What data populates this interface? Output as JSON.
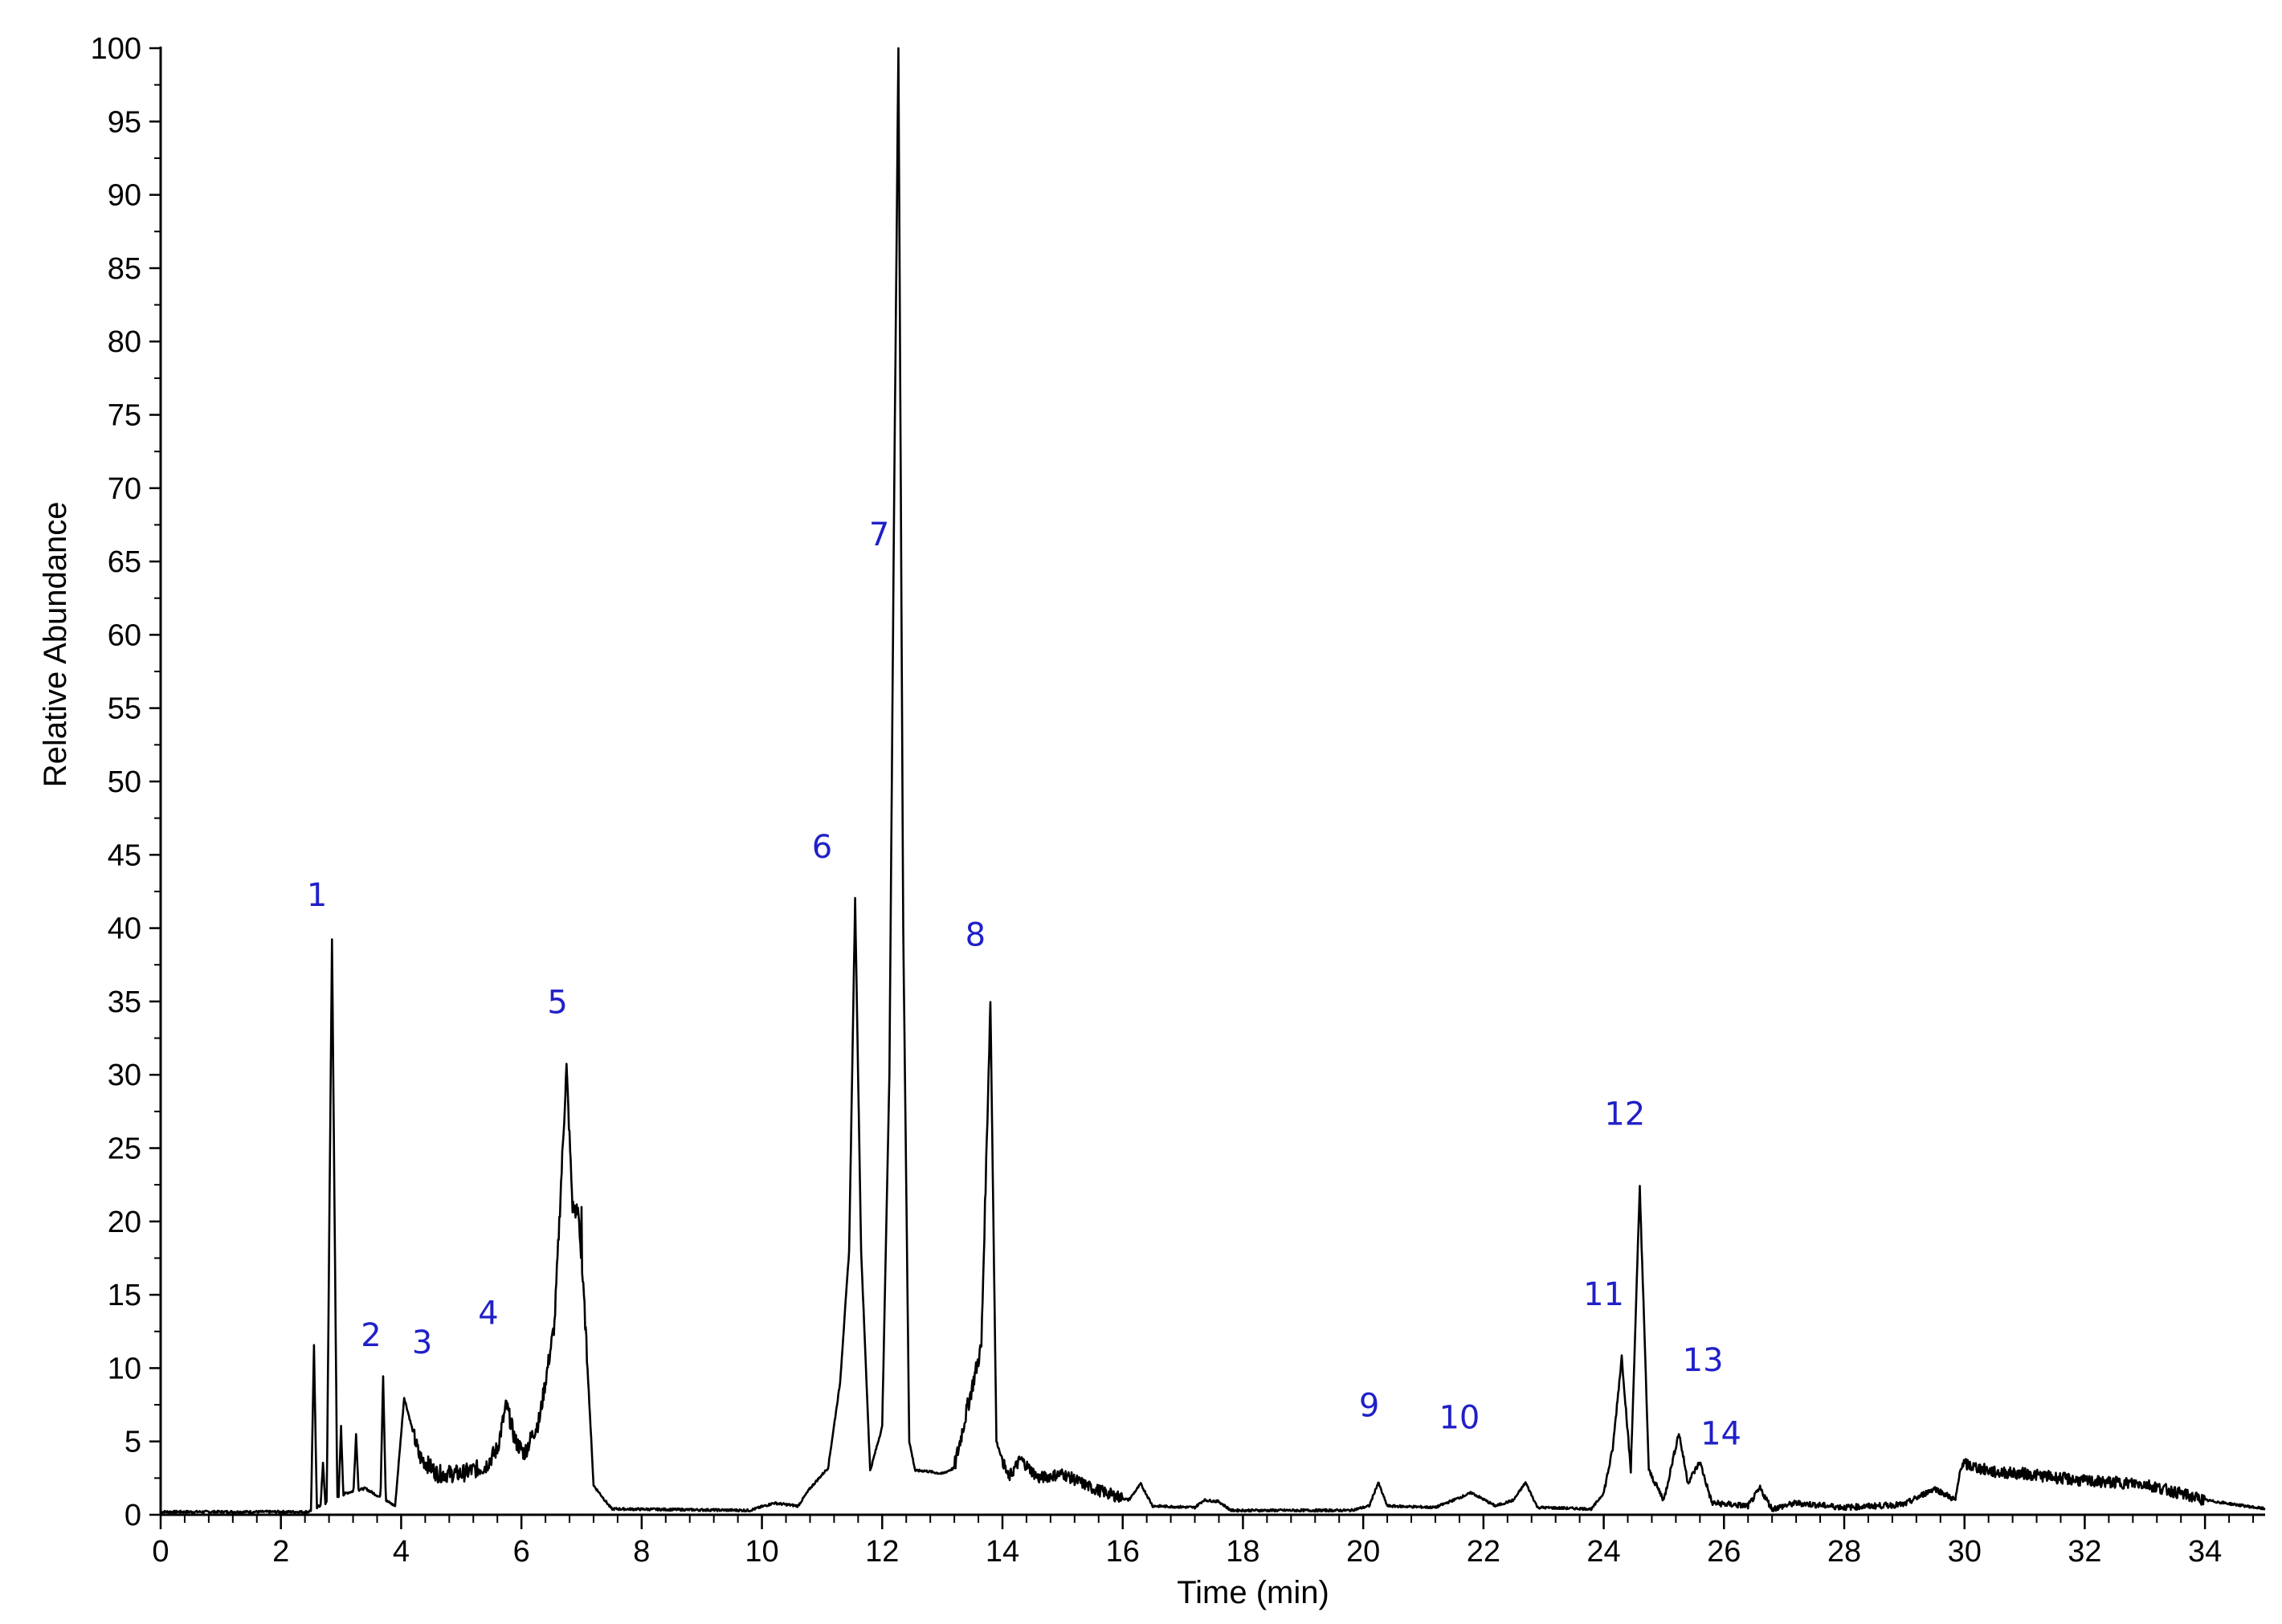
{
  "chart_data": {
    "type": "line",
    "xlabel": "Time (min)",
    "ylabel": "Relative Abundance",
    "xlim": [
      0,
      35
    ],
    "ylim": [
      0,
      100
    ],
    "x_ticks": [
      0,
      2,
      4,
      6,
      8,
      10,
      12,
      14,
      16,
      18,
      20,
      22,
      24,
      26,
      28,
      30,
      32,
      34
    ],
    "x_tick_labels": [
      "0",
      "2",
      "4",
      "6",
      "8",
      "10",
      "12",
      "14",
      "16",
      "18",
      "20",
      "22",
      "24",
      "26",
      "28",
      "30",
      "32",
      "34"
    ],
    "x_minor_step": 0.4,
    "y_ticks": [
      0,
      5,
      10,
      15,
      20,
      25,
      30,
      35,
      40,
      45,
      50,
      55,
      60,
      65,
      70,
      75,
      80,
      85,
      90,
      95,
      100
    ],
    "y_tick_labels": [
      "0",
      "5",
      "10",
      "15",
      "20",
      "25",
      "30",
      "35",
      "40",
      "45",
      "50",
      "55",
      "60",
      "65",
      "70",
      "75",
      "80",
      "85",
      "90",
      "95",
      "100"
    ],
    "grid": false,
    "legend": "none",
    "line_color": "#000000",
    "label_color": "#2020c8",
    "baseline": [
      [
        0,
        0.2
      ],
      [
        2.45,
        0.2
      ],
      [
        3.1,
        1.5
      ],
      [
        3.4,
        1.8
      ],
      [
        3.9,
        0.6
      ],
      [
        4.05,
        8
      ],
      [
        4.3,
        4
      ],
      [
        4.6,
        2.8
      ],
      [
        5.0,
        2.8
      ],
      [
        5.4,
        3.3
      ],
      [
        5.6,
        4.5
      ],
      [
        5.75,
        7.5
      ],
      [
        5.9,
        5
      ],
      [
        6.05,
        4.2
      ],
      [
        6.3,
        6.5
      ],
      [
        6.55,
        13
      ],
      [
        6.75,
        30.5
      ],
      [
        6.85,
        21
      ],
      [
        6.95,
        20.5
      ],
      [
        7.05,
        14
      ],
      [
        7.2,
        2
      ],
      [
        7.5,
        0.4
      ],
      [
        9.8,
        0.3
      ],
      [
        10.2,
        0.8
      ],
      [
        10.6,
        0.6
      ],
      [
        10.8,
        1.8
      ],
      [
        11.1,
        3.2
      ],
      [
        11.3,
        9
      ],
      [
        11.45,
        18
      ],
      [
        11.55,
        42
      ],
      [
        11.65,
        18
      ],
      [
        11.8,
        3
      ],
      [
        12.0,
        6
      ],
      [
        12.12,
        30
      ],
      [
        12.2,
        70
      ],
      [
        12.27,
        100
      ],
      [
        12.35,
        40
      ],
      [
        12.45,
        5
      ],
      [
        12.55,
        3
      ],
      [
        12.7,
        3
      ],
      [
        13.0,
        2.8
      ],
      [
        13.2,
        3.2
      ],
      [
        13.4,
        7
      ],
      [
        13.65,
        11.5
      ],
      [
        13.8,
        35
      ],
      [
        13.9,
        5
      ],
      [
        14.1,
        2.5
      ],
      [
        14.3,
        3.8
      ],
      [
        14.6,
        2.5
      ],
      [
        15.0,
        2.8
      ],
      [
        15.5,
        1.8
      ],
      [
        16.1,
        1.0
      ],
      [
        16.3,
        2.1
      ],
      [
        16.5,
        0.6
      ],
      [
        17.2,
        0.5
      ],
      [
        17.35,
        1.0
      ],
      [
        17.6,
        0.9
      ],
      [
        17.8,
        0.3
      ],
      [
        19.8,
        0.3
      ],
      [
        20.1,
        0.6
      ],
      [
        20.25,
        2.2
      ],
      [
        20.4,
        0.6
      ],
      [
        21.2,
        0.5
      ],
      [
        21.8,
        1.5
      ],
      [
        22.2,
        0.6
      ],
      [
        22.5,
        1.0
      ],
      [
        22.7,
        2.2
      ],
      [
        22.9,
        0.5
      ],
      [
        23.8,
        0.4
      ],
      [
        24.0,
        1.5
      ],
      [
        24.15,
        4.5
      ],
      [
        24.3,
        10.8
      ],
      [
        24.45,
        3
      ],
      [
        24.6,
        22.3
      ],
      [
        24.75,
        3
      ],
      [
        25.0,
        1.0
      ],
      [
        25.25,
        5.6
      ],
      [
        25.4,
        2.2
      ],
      [
        25.6,
        3.6
      ],
      [
        25.8,
        0.8
      ],
      [
        26.4,
        0.6
      ],
      [
        26.6,
        1.8
      ],
      [
        26.8,
        0.4
      ],
      [
        27.2,
        0.8
      ],
      [
        28.0,
        0.5
      ],
      [
        29.0,
        0.7
      ],
      [
        29.5,
        1.8
      ],
      [
        29.85,
        1.0
      ],
      [
        29.95,
        3.5
      ],
      [
        30.5,
        2.9
      ],
      [
        31.0,
        2.8
      ],
      [
        32.0,
        2.3
      ],
      [
        33.0,
        2.1
      ],
      [
        34.0,
        1.0
      ],
      [
        35,
        0.4
      ]
    ],
    "spikes": [
      {
        "x": 2.55,
        "y": 11.5,
        "w": 0.05
      },
      {
        "x": 2.7,
        "y": 3.5,
        "w": 0.05
      },
      {
        "x": 2.85,
        "y": 39.2,
        "w": 0.09
      },
      {
        "x": 3.0,
        "y": 6.0,
        "w": 0.05
      },
      {
        "x": 3.25,
        "y": 5.5,
        "w": 0.06
      },
      {
        "x": 3.7,
        "y": 9.5,
        "w": 0.05
      },
      {
        "x": 7.0,
        "y": 21.0,
        "w": 0.04
      }
    ],
    "annotations": [
      {
        "text": "1",
        "x": 2.6,
        "y": 41.5
      },
      {
        "text": "2",
        "x": 3.5,
        "y": 11.5
      },
      {
        "text": "3",
        "x": 4.35,
        "y": 11.0
      },
      {
        "text": "4",
        "x": 5.45,
        "y": 13.0
      },
      {
        "text": "5",
        "x": 6.6,
        "y": 34.2
      },
      {
        "text": "6",
        "x": 11.0,
        "y": 44.8
      },
      {
        "text": "7",
        "x": 11.95,
        "y": 66.1
      },
      {
        "text": "8",
        "x": 13.55,
        "y": 38.8
      },
      {
        "text": "9",
        "x": 20.1,
        "y": 6.7
      },
      {
        "text": "10",
        "x": 21.6,
        "y": 5.9
      },
      {
        "text": "11",
        "x": 24.0,
        "y": 14.3
      },
      {
        "text": "12",
        "x": 24.35,
        "y": 26.6
      },
      {
        "text": "13",
        "x": 25.65,
        "y": 9.8
      },
      {
        "text": "14",
        "x": 25.95,
        "y": 4.8
      }
    ]
  }
}
